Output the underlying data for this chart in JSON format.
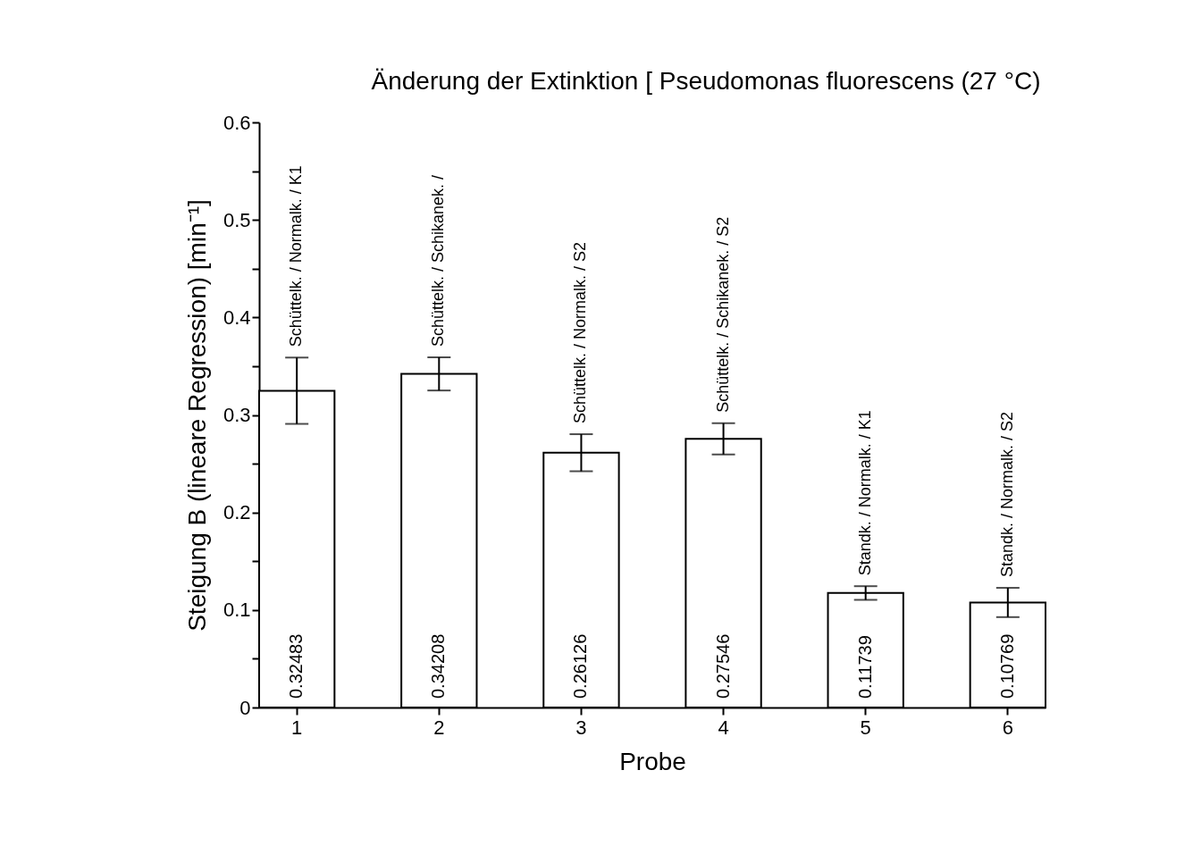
{
  "chart_data": {
    "type": "bar",
    "title": "Änderung der Extinktion [ Pseudomonas fluorescens (27 °C)",
    "xlabel": "Probe",
    "ylabel": "Steigung B (lineare Regression)  [min⁻¹]",
    "categories": [
      "1",
      "2",
      "3",
      "4",
      "5",
      "6"
    ],
    "values": [
      0.32483,
      0.34208,
      0.26126,
      0.27546,
      0.11739,
      0.10769
    ],
    "errors": [
      0.034,
      0.017,
      0.019,
      0.016,
      0.007,
      0.015
    ],
    "color": "#ffffff",
    "data_labels": true,
    "ylim": [
      0,
      0.6
    ],
    "yticks": [
      0,
      {
        "value": 0.05,
        "label": null
      },
      0.1,
      {
        "value": 0.15,
        "label": null
      },
      0.2,
      {
        "value": 0.25,
        "label": null
      },
      0.3,
      {
        "value": 0.35,
        "label": null
      },
      0.4,
      {
        "value": 0.45,
        "label": null
      },
      0.5,
      {
        "value": 0.55,
        "label": null
      },
      0.6
    ],
    "grid": false,
    "annotations": [
      "Schüttelk. / Normalk. / K1",
      "Schüttelk. / Schikanek. /",
      "Schüttelk. / Normalk. / S2",
      "Schüttelk. / Schikanek. / S2",
      "Standk. / Normalk. / K1",
      "Standk. / Normalk. / S2"
    ]
  }
}
